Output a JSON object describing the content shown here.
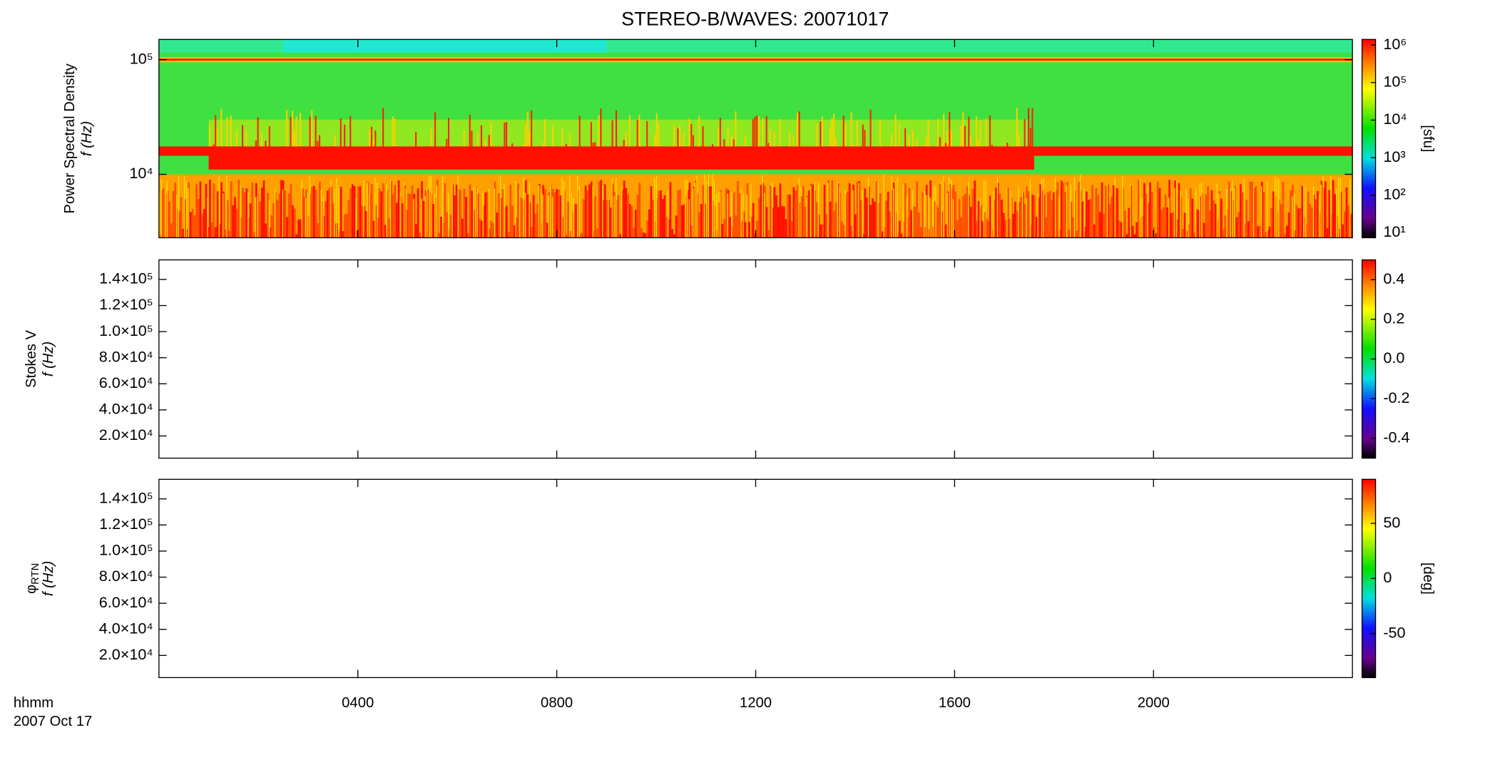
{
  "title": "STEREO-B/WAVES: 20071017",
  "x_label_lines": [
    "hhmm",
    "2007 Oct 17"
  ],
  "chart_data": [
    {
      "type": "heatmap",
      "y_labels": [
        "Power Spectral Density",
        "f (Hz)"
      ],
      "log_y": true,
      "ylim": [
        2800,
        150000
      ],
      "yticks": [
        {
          "value": 10000,
          "label": "10⁴"
        },
        {
          "value": 100000,
          "label": "10⁵"
        }
      ],
      "colorbar": {
        "log": true,
        "lim": [
          7.4,
          1400000
        ],
        "label": "[sfu]",
        "ticks": [
          {
            "value": 10,
            "label": "10¹"
          },
          {
            "value": 100,
            "label": "10²"
          },
          {
            "value": 1000,
            "label": "10³"
          },
          {
            "value": 10000,
            "label": "10⁴"
          },
          {
            "value": 100000,
            "label": "10⁵"
          },
          {
            "value": 1000000,
            "label": "10⁶"
          }
        ]
      }
    },
    {
      "type": "heatmap",
      "y_labels": [
        "Stokes V",
        "f (Hz)"
      ],
      "log_y": false,
      "ylim": [
        3000,
        155000
      ],
      "yticks": [
        {
          "value": 20000,
          "label": "2.0×10⁴"
        },
        {
          "value": 40000,
          "label": "4.0×10⁴"
        },
        {
          "value": 60000,
          "label": "6.0×10⁴"
        },
        {
          "value": 80000,
          "label": "8.0×10⁴"
        },
        {
          "value": 100000,
          "label": "1.0×10⁵"
        },
        {
          "value": 120000,
          "label": "1.2×10⁵"
        },
        {
          "value": 140000,
          "label": "1.4×10⁵"
        }
      ],
      "colorbar": {
        "log": false,
        "lim": [
          -0.5,
          0.5
        ],
        "ticks": [
          -0.4,
          -0.2,
          {
            "value": 0,
            "label": "0.0"
          },
          0.2,
          0.4
        ]
      }
    },
    {
      "type": "heatmap",
      "y_labels": [
        "φ",
        "f (Hz)"
      ],
      "y_label_subscript": "RTN",
      "log_y": false,
      "ylim": [
        3000,
        155000
      ],
      "yticks": [
        {
          "value": 20000,
          "label": "2.0×10⁴"
        },
        {
          "value": 40000,
          "label": "4.0×10⁴"
        },
        {
          "value": 60000,
          "label": "6.0×10⁴"
        },
        {
          "value": 80000,
          "label": "8.0×10⁴"
        },
        {
          "value": 100000,
          "label": "1.0×10⁵"
        },
        {
          "value": 120000,
          "label": "1.2×10⁵"
        },
        {
          "value": 140000,
          "label": "1.4×10⁵"
        }
      ],
      "colorbar": {
        "log": false,
        "lim": [
          -90,
          90
        ],
        "label": "[deg]",
        "ticks": [
          -50,
          0,
          50
        ]
      },
      "xlim": [
        0,
        24
      ],
      "xticks": [
        {
          "value": 4,
          "label": "0400"
        },
        {
          "value": 8,
          "label": "0800"
        },
        {
          "value": 12,
          "label": "1200"
        },
        {
          "value": 16,
          "label": "1600"
        },
        {
          "value": 20,
          "label": "2000"
        }
      ]
    }
  ]
}
